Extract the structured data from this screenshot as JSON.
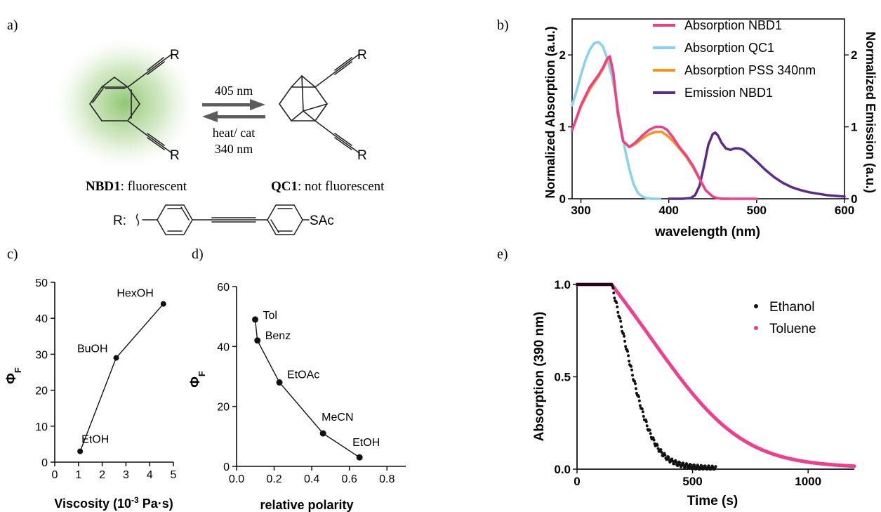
{
  "panel_labels": {
    "a": "a)",
    "b": "b)",
    "c": "c)",
    "d": "d)",
    "e": "e)"
  },
  "scheme": {
    "arrow_top_label": "405 nm",
    "arrow_bottom_label_1": "heat/ cat",
    "arrow_bottom_label_2": "340 nm",
    "r_label": "R",
    "nbd_name": "NBD1",
    "nbd_desc": ": fluorescent",
    "qc_name": "QC1",
    "qc_desc": ": not fluorescent",
    "r_def_label": "R:",
    "sac_label": "SAc",
    "glow_color": "#7dbd5a"
  },
  "chart_data": [
    {
      "id": "b",
      "type": "line",
      "xlabel": "wavelength (nm)",
      "ylabel": "Normalized Absorption (a.u.)",
      "y2label": "Normalized Emission (a.u.)",
      "xlim": [
        290,
        600
      ],
      "ylim": [
        0,
        2.5
      ],
      "y2lim": [
        0,
        2.5
      ],
      "xticks": [
        300,
        400,
        500,
        600
      ],
      "yticks": [
        0,
        1,
        2
      ],
      "y2ticks": [
        0,
        1,
        2
      ],
      "legend_position": "top-right",
      "series": [
        {
          "name": "Absorption NBD1",
          "color": "#ee3f8c",
          "x": [
            290,
            300,
            310,
            320,
            325,
            330,
            333,
            337,
            342,
            348,
            355,
            362,
            370,
            378,
            385,
            392,
            398,
            405,
            412,
            420,
            428,
            435,
            442,
            450,
            455,
            460,
            470,
            480,
            500
          ],
          "y": [
            0.95,
            1.3,
            1.55,
            1.72,
            1.82,
            1.95,
            1.98,
            1.75,
            1.2,
            0.8,
            0.72,
            0.78,
            0.88,
            0.96,
            1.0,
            1.0,
            0.96,
            0.85,
            0.72,
            0.6,
            0.45,
            0.28,
            0.12,
            0.03,
            0.01,
            0.0,
            0.0,
            0.0,
            0.0
          ]
        },
        {
          "name": "Absorption QC1",
          "color": "#87d2f0",
          "x": [
            290,
            295,
            300,
            305,
            310,
            315,
            320,
            325,
            330,
            335,
            340,
            345,
            350,
            355,
            360,
            365,
            370,
            375,
            380,
            385,
            390
          ],
          "y": [
            1.3,
            1.5,
            1.72,
            1.92,
            2.07,
            2.16,
            2.18,
            2.12,
            1.95,
            1.72,
            1.4,
            1.05,
            0.7,
            0.42,
            0.2,
            0.08,
            0.03,
            0.01,
            0.0,
            0.0,
            0.0
          ]
        },
        {
          "name": "Absorption PSS 340nm",
          "color": "#f7941d",
          "x": [
            290,
            300,
            310,
            320,
            325,
            330,
            333,
            337,
            342,
            348,
            355,
            362,
            370,
            378,
            385,
            392,
            398,
            405,
            412,
            420,
            428,
            435,
            442,
            450,
            455,
            460,
            470
          ],
          "y": [
            0.95,
            1.28,
            1.52,
            1.7,
            1.8,
            1.93,
            1.96,
            1.72,
            1.18,
            0.8,
            0.72,
            0.76,
            0.84,
            0.9,
            0.93,
            0.93,
            0.88,
            0.8,
            0.7,
            0.58,
            0.43,
            0.27,
            0.12,
            0.03,
            0.01,
            0.0,
            0.0
          ]
        },
        {
          "name": "Emission NBD1",
          "color": "#5b2d8a",
          "x": [
            400,
            415,
            425,
            430,
            435,
            440,
            445,
            450,
            453,
            456,
            460,
            465,
            470,
            475,
            480,
            485,
            490,
            500,
            510,
            520,
            530,
            540,
            550,
            560,
            570,
            580,
            590,
            600
          ],
          "y": [
            0.0,
            0.0,
            0.01,
            0.05,
            0.18,
            0.45,
            0.75,
            0.9,
            0.92,
            0.88,
            0.78,
            0.7,
            0.68,
            0.7,
            0.7,
            0.68,
            0.63,
            0.52,
            0.4,
            0.3,
            0.22,
            0.16,
            0.12,
            0.09,
            0.07,
            0.05,
            0.04,
            0.03
          ]
        }
      ]
    },
    {
      "id": "c",
      "type": "line",
      "xlabel": "Viscosity (10",
      "xlabel_sup": "-3",
      "xlabel_end": " Pa·s)",
      "ylabel": "Φ",
      "ylabel_sub": "F",
      "xlim": [
        0,
        5
      ],
      "ylim": [
        0,
        50
      ],
      "xticks": [
        0,
        1,
        2,
        3,
        4,
        5
      ],
      "yticks": [
        0,
        10,
        20,
        30,
        40,
        50
      ],
      "points": [
        {
          "x": 1.07,
          "y": 3,
          "label": "EtOH"
        },
        {
          "x": 2.59,
          "y": 29,
          "label": "BuOH"
        },
        {
          "x": 4.58,
          "y": 44,
          "label": "HexOH"
        }
      ]
    },
    {
      "id": "d",
      "type": "line",
      "xlabel": "relative polarity",
      "ylabel": "Φ",
      "ylabel_sub": "F",
      "xlim": [
        0,
        0.9
      ],
      "ylim": [
        0,
        60
      ],
      "xticks": [
        "0.0",
        "0.2",
        "0.4",
        "0.6",
        "0.8"
      ],
      "xtick_values": [
        0,
        0.2,
        0.4,
        0.6,
        0.8
      ],
      "yticks": [
        0,
        20,
        40,
        60
      ],
      "points": [
        {
          "x": 0.099,
          "y": 49,
          "label": "Tol"
        },
        {
          "x": 0.111,
          "y": 42,
          "label": "Benz"
        },
        {
          "x": 0.228,
          "y": 28,
          "label": "EtOAc"
        },
        {
          "x": 0.46,
          "y": 11,
          "label": "MeCN"
        },
        {
          "x": 0.654,
          "y": 3,
          "label": "EtOH"
        }
      ]
    },
    {
      "id": "e",
      "type": "scatter",
      "xlabel": "Time (s)",
      "ylabel": "Absorption (390 nm)",
      "xlim": [
        0,
        1200
      ],
      "ylim": [
        0,
        1
      ],
      "xticks": [
        0,
        500,
        1000
      ],
      "yticks": [
        "0.0",
        "0.5",
        "1.0"
      ],
      "ytick_values": [
        0,
        0.5,
        1
      ],
      "legend_position": "top-right",
      "series": [
        {
          "name": "Ethanol",
          "color": "#111111",
          "t_start": 150,
          "t_end": 600,
          "tau": 95,
          "step": 3
        },
        {
          "name": "Toluene",
          "color": "#ee3f8c",
          "t_start": 150,
          "t_end": 1200,
          "tau": 300,
          "step": 5
        }
      ]
    }
  ]
}
